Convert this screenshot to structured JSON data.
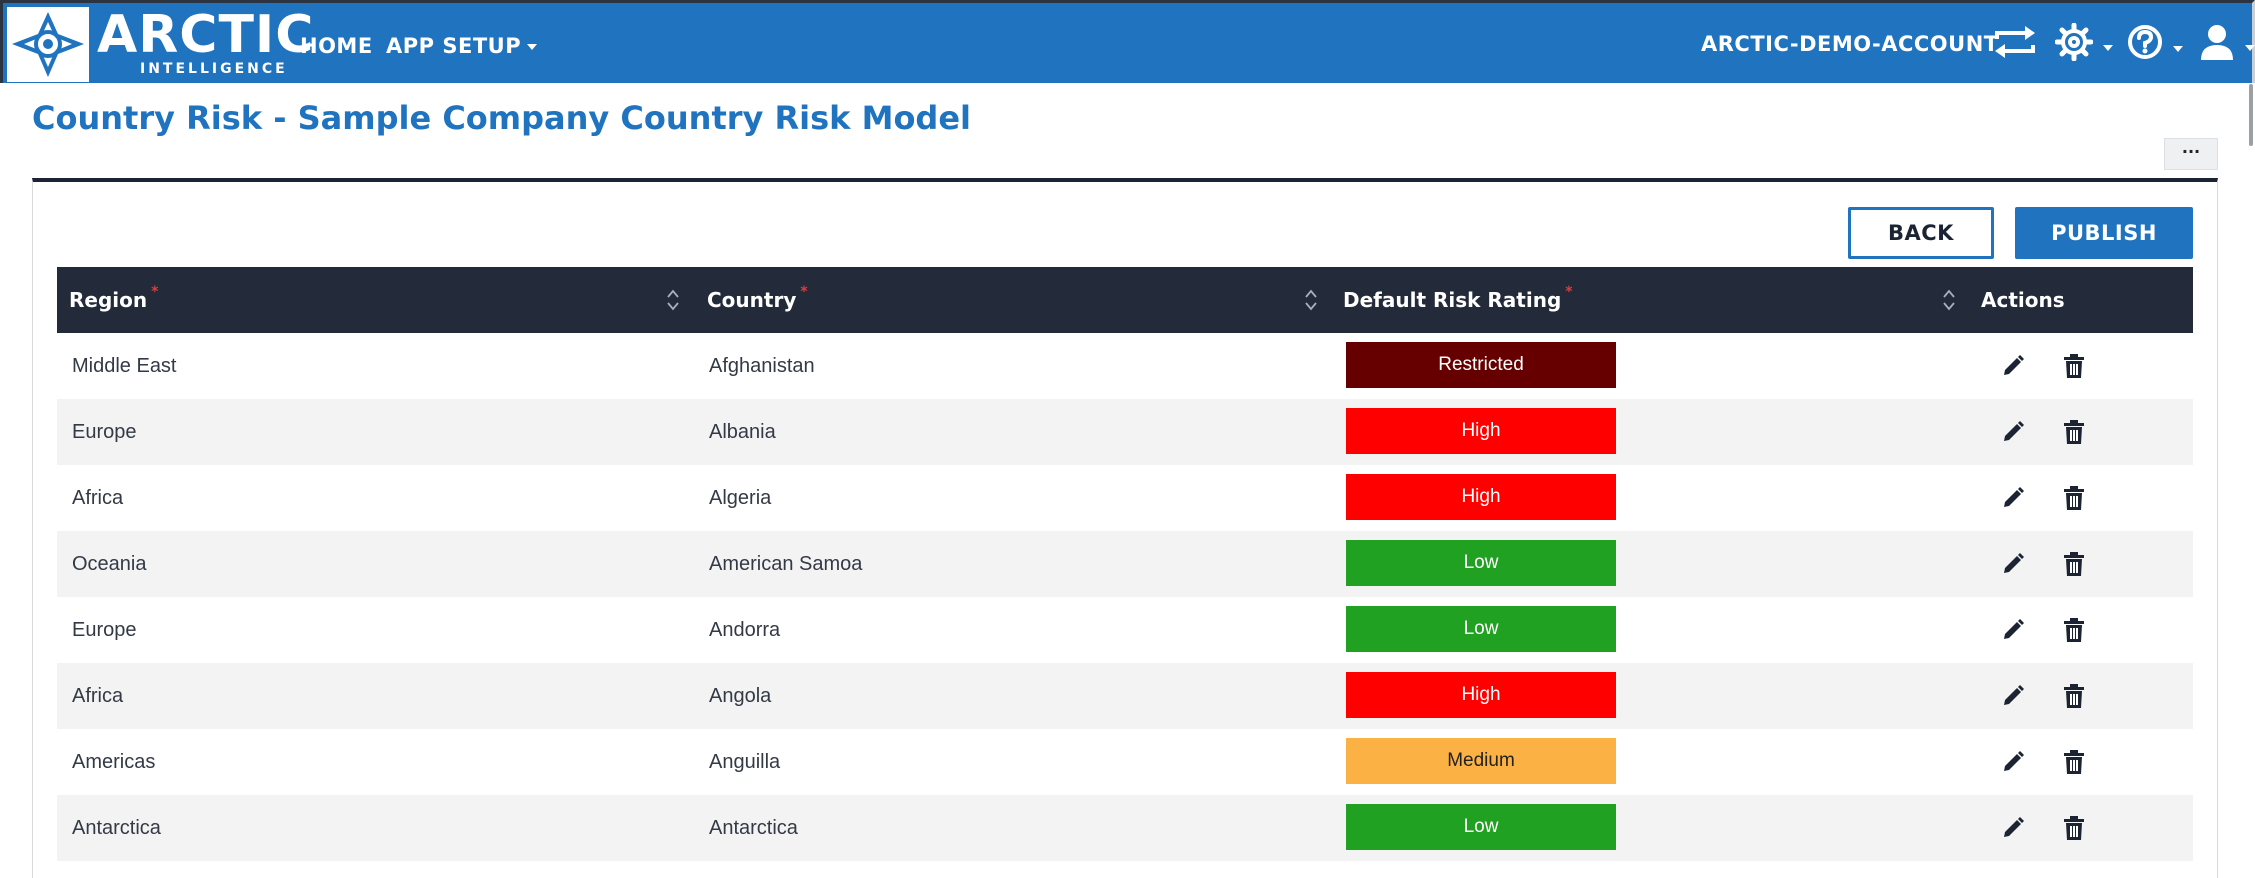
{
  "brand": {
    "name": "ARCTIC",
    "sub": "INTELLIGENCE"
  },
  "nav": {
    "home": "HOME",
    "app_setup": "APP SETUP",
    "account": "ARCTIC-DEMO-ACCOUNT",
    "icons": [
      "switch-account-icon",
      "gear-icon",
      "help-icon",
      "user-icon"
    ]
  },
  "page": {
    "title": "Country Risk - Sample Company Country Risk Model",
    "more": "···"
  },
  "buttons": {
    "back": "BACK",
    "publish": "PUBLISH"
  },
  "table": {
    "headers": {
      "region": "Region",
      "country": "Country",
      "rating": "Default Risk Rating",
      "actions": "Actions",
      "required_marker": "*"
    },
    "rows": [
      {
        "region": "Middle East",
        "country": "Afghanistan",
        "rating": "Restricted"
      },
      {
        "region": "Europe",
        "country": "Albania",
        "rating": "High"
      },
      {
        "region": "Africa",
        "country": "Algeria",
        "rating": "High"
      },
      {
        "region": "Oceania",
        "country": "American Samoa",
        "rating": "Low"
      },
      {
        "region": "Europe",
        "country": "Andorra",
        "rating": "Low"
      },
      {
        "region": "Africa",
        "country": "Angola",
        "rating": "High"
      },
      {
        "region": "Americas",
        "country": "Anguilla",
        "rating": "Medium"
      },
      {
        "region": "Antarctica",
        "country": "Antarctica",
        "rating": "Low"
      }
    ]
  },
  "colors": {
    "primary": "#1f73bf",
    "header_dark": "#232a39",
    "rating": {
      "Restricted": {
        "bg": "#660000",
        "fg": "#ffffff"
      },
      "High": {
        "bg": "#ff0000",
        "fg": "#ffffff"
      },
      "Low": {
        "bg": "#21a121",
        "fg": "#ffffff"
      },
      "Medium": {
        "bg": "#fbb144",
        "fg": "#222222"
      }
    }
  }
}
